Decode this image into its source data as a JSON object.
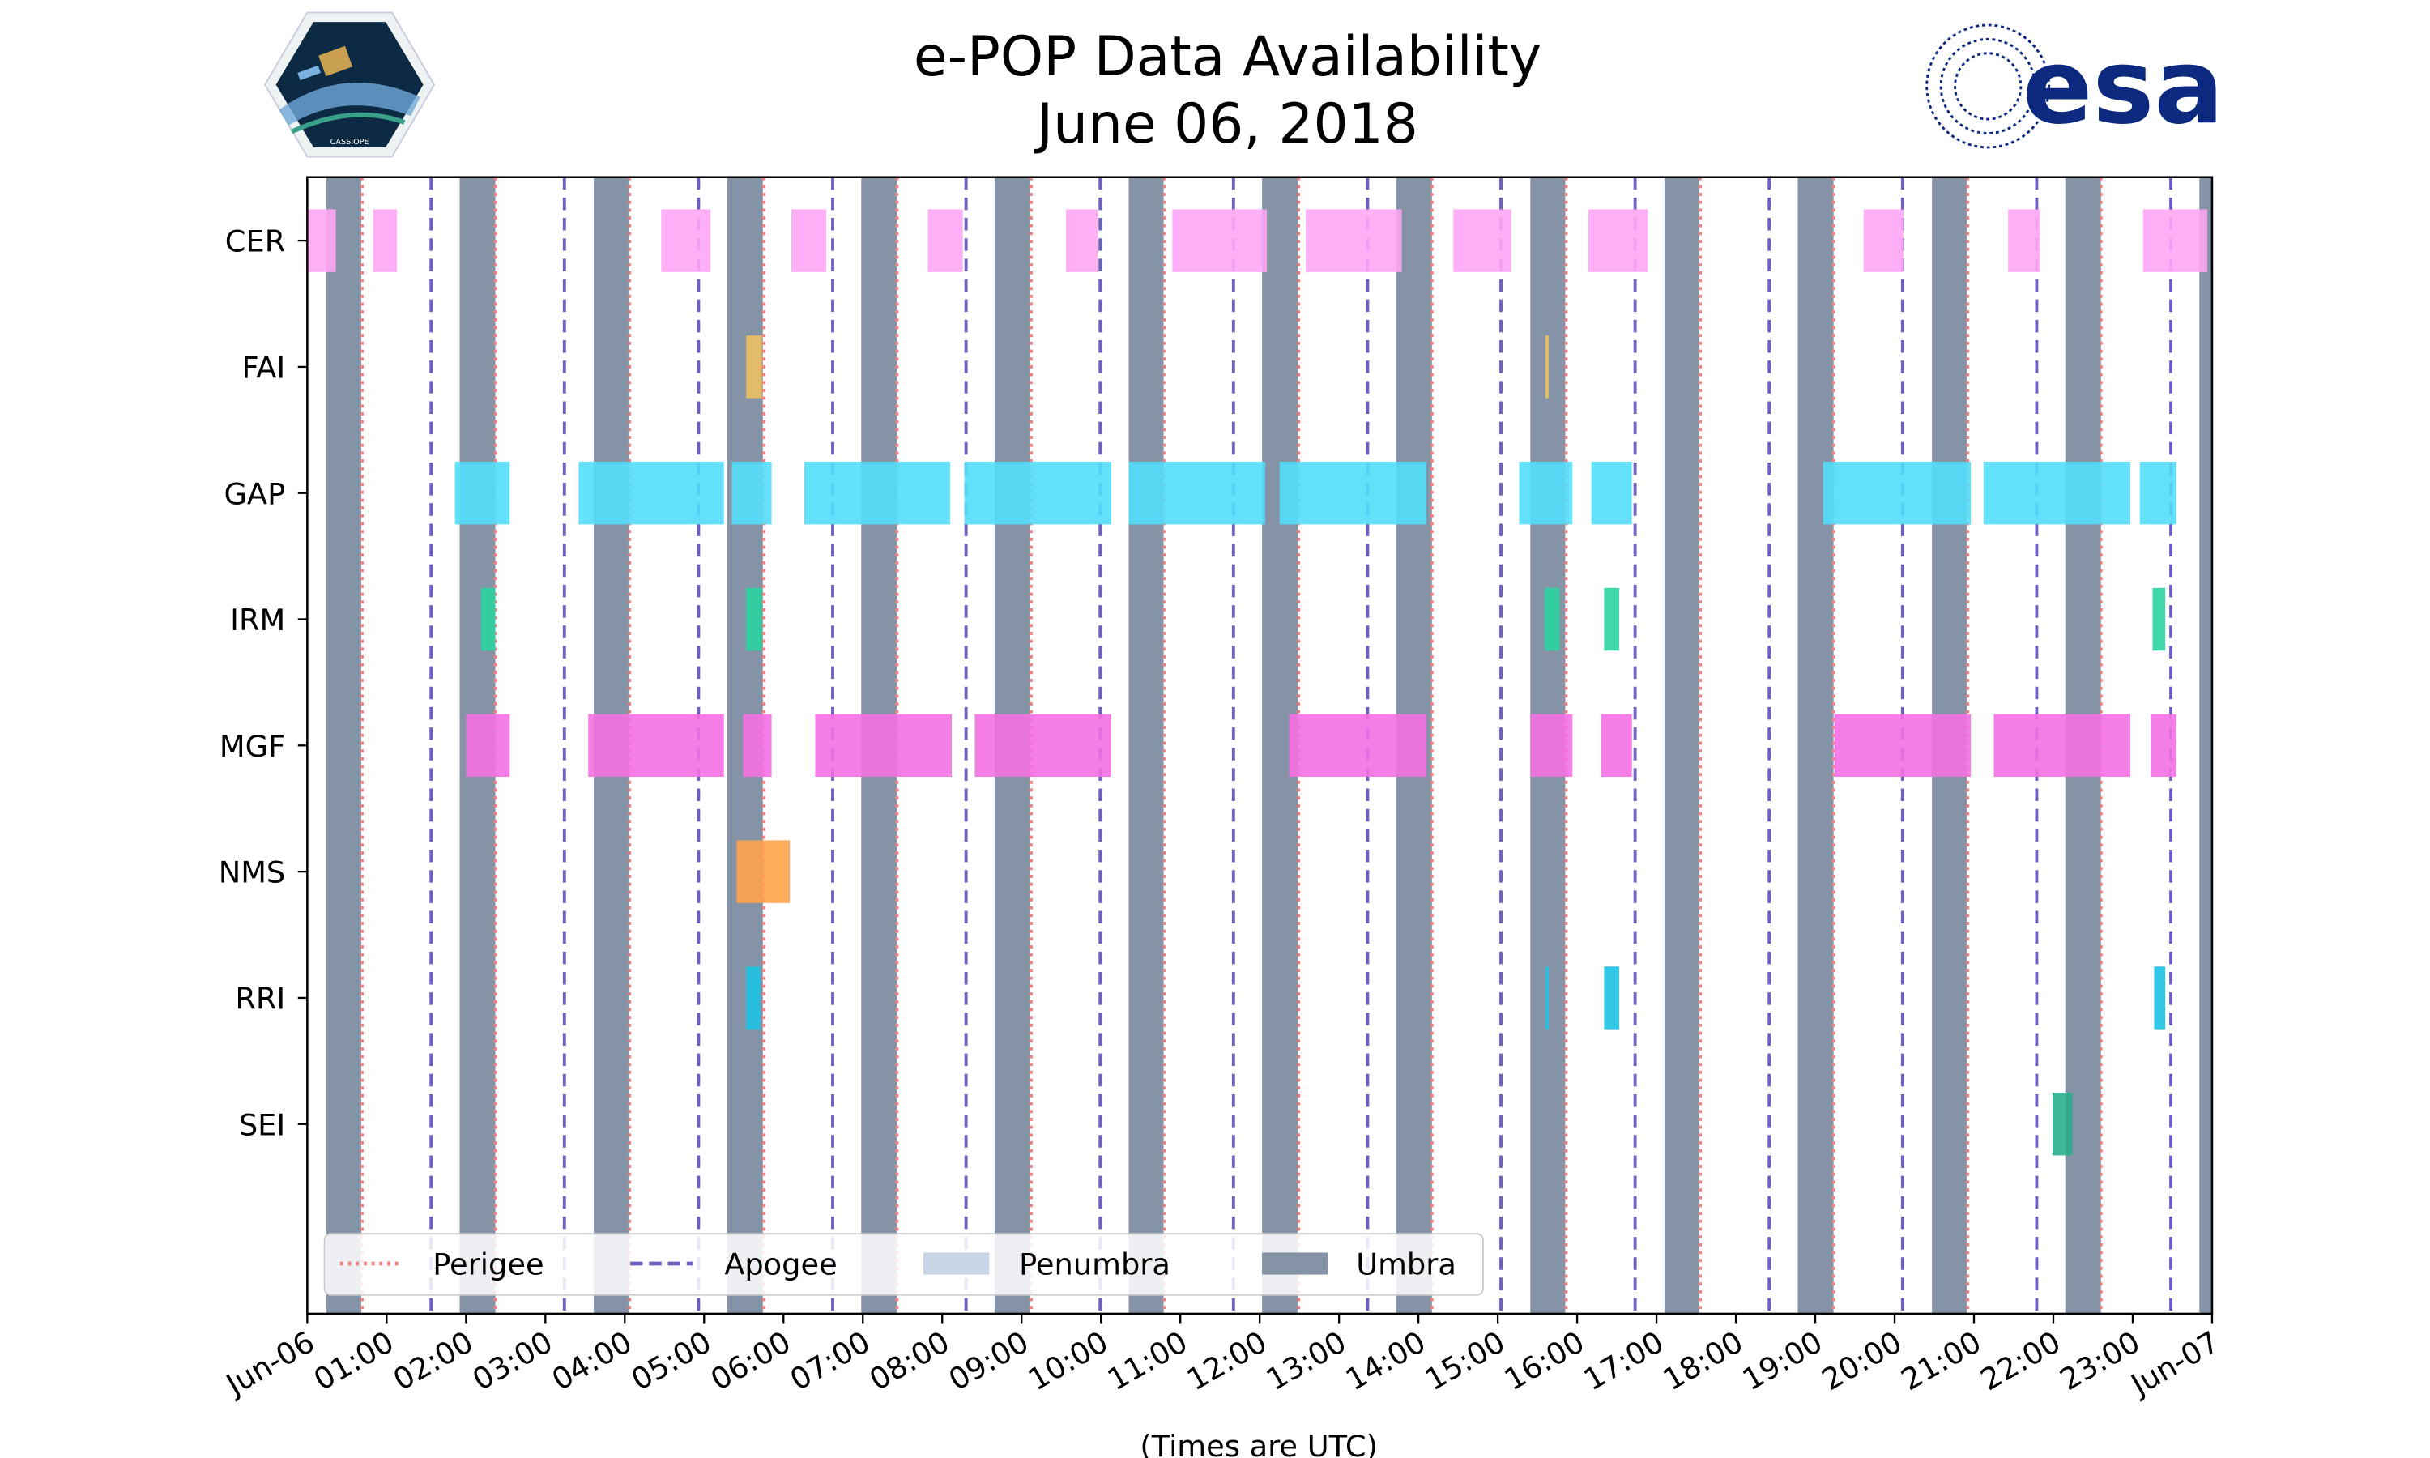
{
  "header": {
    "title": "e-POP Data Availability",
    "subtitle": "June 06, 2018",
    "left_logo_text": "CASSIOPE",
    "right_logo_text": "esa"
  },
  "colors": {
    "umbra": "#8494a6",
    "penumbra": "#c9d5e5",
    "perigee": "#f08080",
    "apogee": "#6f5fc0",
    "CER": "#ffa6f4",
    "FAI": "#ecc062",
    "GAP": "#52defa",
    "IRM": "#2bd3a2",
    "MGF": "#f370e2",
    "NMS": "#ffa24a",
    "RRI": "#1ec2e4",
    "SEI": "#2aae8c"
  },
  "chart_data": {
    "type": "timeline",
    "title": "e-POP Data Availability",
    "xlabel": "(Times are UTC)",
    "ylabel": "",
    "xlim_hours": [
      0,
      24
    ],
    "x_tick_labels": [
      "Jun-06",
      "01:00",
      "02:00",
      "03:00",
      "04:00",
      "05:00",
      "06:00",
      "07:00",
      "08:00",
      "09:00",
      "10:00",
      "11:00",
      "12:00",
      "13:00",
      "14:00",
      "15:00",
      "16:00",
      "17:00",
      "18:00",
      "19:00",
      "20:00",
      "21:00",
      "22:00",
      "23:00",
      "Jun-07"
    ],
    "categories": [
      "CER",
      "FAI",
      "GAP",
      "IRM",
      "MGF",
      "NMS",
      "RRI",
      "SEI"
    ],
    "intervals_hours": {
      "CER": [
        [
          0,
          0.36
        ],
        [
          0.83,
          1.13
        ],
        [
          4.46,
          5.08
        ],
        [
          6.1,
          6.54
        ],
        [
          7.82,
          8.26
        ],
        [
          9.56,
          9.96
        ],
        [
          10.9,
          12.09
        ],
        [
          12.58,
          13.79
        ],
        [
          14.44,
          15.17
        ],
        [
          16.14,
          16.89
        ],
        [
          19.61,
          20.11
        ],
        [
          21.43,
          21.83
        ],
        [
          23.13,
          23.94
        ]
      ],
      "FAI": [
        [
          5.53,
          5.73
        ],
        [
          15.6,
          15.64
        ]
      ],
      "GAP": [
        [
          1.86,
          2.55
        ],
        [
          3.42,
          5.25
        ],
        [
          5.35,
          5.85
        ],
        [
          6.26,
          8.1
        ],
        [
          8.28,
          10.13
        ],
        [
          10.35,
          12.07
        ],
        [
          12.25,
          14.1
        ],
        [
          15.27,
          15.94
        ],
        [
          16.18,
          16.69
        ],
        [
          19.1,
          20.96
        ],
        [
          21.12,
          22.97
        ],
        [
          23.09,
          23.55
        ]
      ],
      "IRM": [
        [
          2.19,
          2.37
        ],
        [
          5.53,
          5.73
        ],
        [
          15.59,
          15.78
        ],
        [
          16.34,
          16.53
        ],
        [
          23.25,
          23.41
        ]
      ],
      "MGF": [
        [
          2.0,
          2.55
        ],
        [
          3.54,
          5.25
        ],
        [
          5.49,
          5.85
        ],
        [
          6.4,
          8.12
        ],
        [
          8.41,
          10.13
        ],
        [
          12.37,
          14.1
        ],
        [
          15.41,
          15.94
        ],
        [
          16.3,
          16.69
        ],
        [
          19.24,
          20.96
        ],
        [
          21.25,
          22.97
        ],
        [
          23.23,
          23.55
        ]
      ],
      "NMS": [
        [
          5.41,
          6.08
        ]
      ],
      "RRI": [
        [
          5.53,
          5.71
        ],
        [
          15.6,
          15.64
        ],
        [
          16.34,
          16.53
        ],
        [
          23.27,
          23.41
        ]
      ],
      "SEI": [
        [
          21.99,
          22.24
        ]
      ]
    },
    "umbra_hours": [
      [
        0.24,
        0.68
      ],
      [
        1.92,
        2.37
      ],
      [
        3.61,
        4.05
      ],
      [
        5.29,
        5.74
      ],
      [
        6.98,
        7.43
      ],
      [
        8.66,
        9.11
      ],
      [
        10.35,
        10.79
      ],
      [
        12.03,
        12.48
      ],
      [
        13.72,
        14.17
      ],
      [
        15.41,
        15.85
      ],
      [
        17.1,
        17.54
      ],
      [
        18.78,
        19.23
      ],
      [
        20.47,
        20.91
      ],
      [
        22.15,
        22.6
      ],
      [
        23.84,
        24.0
      ]
    ],
    "perigee_hours": [
      0.69,
      2.37,
      4.06,
      5.75,
      7.43,
      9.12,
      10.8,
      12.49,
      14.17,
      15.86,
      17.55,
      19.23,
      20.92,
      22.6
    ],
    "apogee_hours": [
      1.56,
      3.24,
      4.93,
      6.62,
      8.3,
      9.99,
      11.67,
      13.36,
      15.04,
      16.73,
      18.42,
      20.1,
      21.79,
      23.48
    ],
    "legend": {
      "placement": "bottom-left",
      "entries": [
        "Perigee",
        "Apogee",
        "Penumbra",
        "Umbra"
      ]
    }
  }
}
